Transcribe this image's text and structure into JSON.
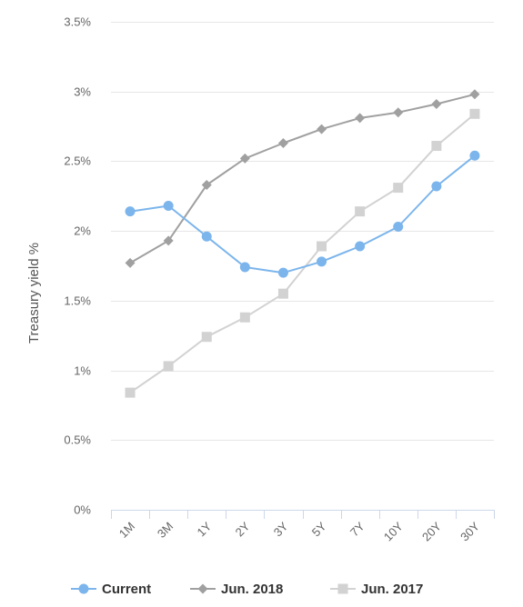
{
  "chart_data": {
    "type": "line",
    "ylabel": "Treasury yield %",
    "categories": [
      "1M",
      "3M",
      "1Y",
      "2Y",
      "3Y",
      "5Y",
      "7Y",
      "10Y",
      "20Y",
      "30Y"
    ],
    "yticks": [
      "0%",
      "0.5%",
      "1%",
      "1.5%",
      "2%",
      "2.5%",
      "3%",
      "3.5%"
    ],
    "ylim": [
      0,
      3.5
    ],
    "grid": true,
    "legend_position": "bottom",
    "series": [
      {
        "name": "Current",
        "color": "#7cb5ec",
        "marker": "circle",
        "values": [
          2.14,
          2.18,
          1.96,
          1.74,
          1.7,
          1.78,
          1.89,
          2.03,
          2.32,
          2.54
        ]
      },
      {
        "name": "Jun. 2018",
        "color": "#a0a0a0",
        "marker": "diamond",
        "values": [
          1.77,
          1.93,
          2.33,
          2.52,
          2.63,
          2.73,
          2.81,
          2.85,
          2.91,
          2.98
        ]
      },
      {
        "name": "Jun. 2017",
        "color": "#d2d2d2",
        "marker": "square",
        "values": [
          0.84,
          1.03,
          1.24,
          1.38,
          1.55,
          1.89,
          2.14,
          2.31,
          2.61,
          2.84
        ]
      }
    ]
  }
}
